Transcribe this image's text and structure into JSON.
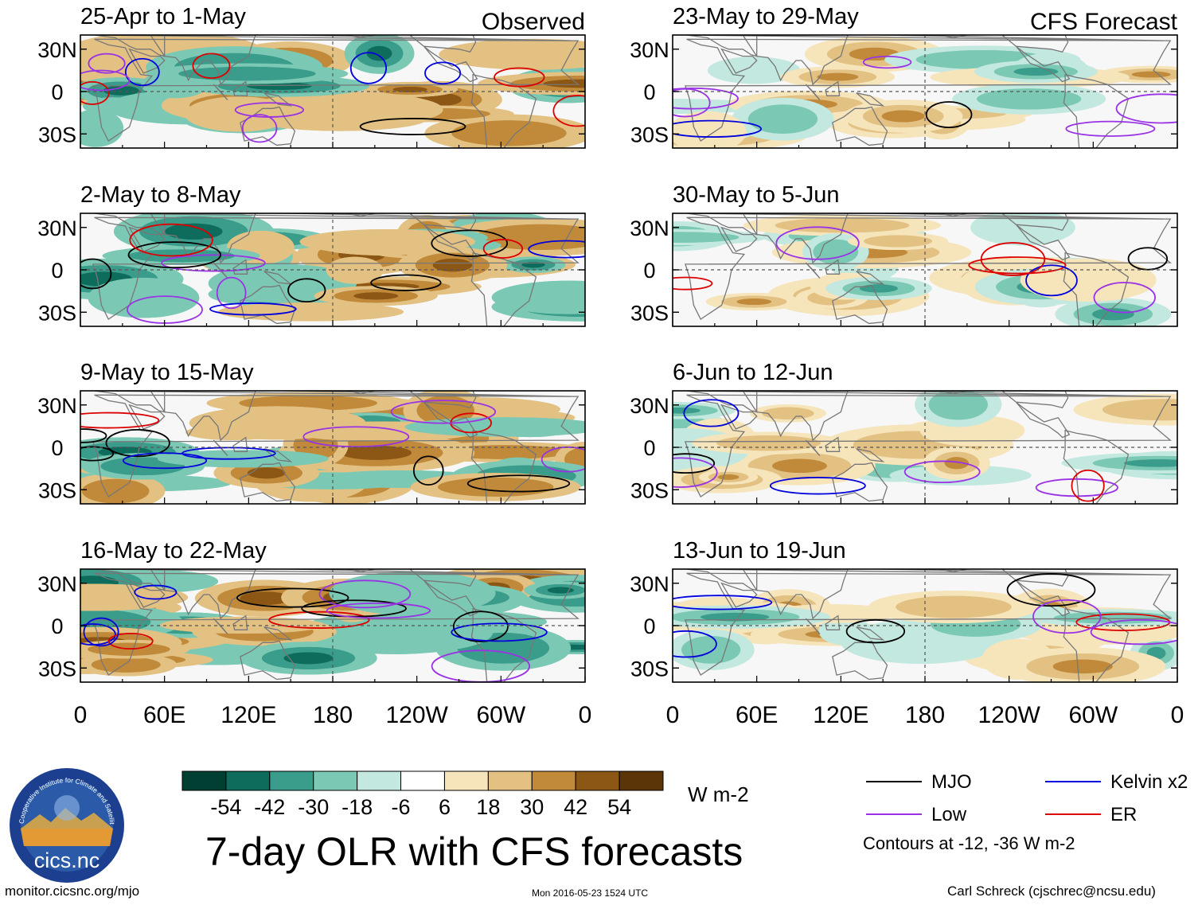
{
  "chart_data": {
    "type": "heatmap",
    "title": "7-day OLR with CFS forecasts",
    "variable": "OLR anomaly",
    "units": "W m-2",
    "colorbar": {
      "colors": [
        "#023f33",
        "#0e6c5c",
        "#3a9c8a",
        "#7bc9b4",
        "#c3e8df",
        "#ffffff",
        "#f6e4bb",
        "#e2c183",
        "#c08a3a",
        "#8c5714",
        "#5b3508"
      ],
      "tick_labels": [
        "-54",
        "-42",
        "-30",
        "-18",
        "-6",
        "6",
        "18",
        "30",
        "42",
        "54"
      ]
    },
    "x_ticks": [
      "0",
      "60E",
      "120E",
      "180",
      "120W",
      "60W",
      "0"
    ],
    "y_ticks": [
      "30N",
      "0",
      "30S"
    ],
    "x_range_deg": [
      0,
      360
    ],
    "y_range_deg": [
      -40,
      40
    ],
    "contour_note": "Contours at -12, -36 W m-2",
    "columns": [
      {
        "name": "Observed",
        "label": "Observed"
      },
      {
        "name": "CFS Forecast",
        "label": "CFS Forecast"
      }
    ],
    "panels": [
      {
        "date": "25-Apr to 1-May",
        "column": "Observed"
      },
      {
        "date": "2-May to 8-May",
        "column": "Observed"
      },
      {
        "date": "9-May to 15-May",
        "column": "Observed"
      },
      {
        "date": "16-May to 22-May",
        "column": "Observed"
      },
      {
        "date": "23-May to 29-May",
        "column": "CFS Forecast"
      },
      {
        "date": "30-May to 5-Jun",
        "column": "CFS Forecast"
      },
      {
        "date": "6-Jun to 12-Jun",
        "column": "CFS Forecast"
      },
      {
        "date": "13-Jun to 19-Jun",
        "column": "CFS Forecast"
      }
    ],
    "legend": [
      {
        "label": "MJO",
        "color": "#000000"
      },
      {
        "label": "Kelvin x2",
        "color": "#0000dd"
      },
      {
        "label": "Low",
        "color": "#9a32e6"
      },
      {
        "label": "ER",
        "color": "#dd0000"
      }
    ]
  },
  "footer": {
    "website": "monitor.cicsnc.org/mjo",
    "timestamp": "Mon 2016-05-23 1524 UTC",
    "credit": "Carl Schreck (cjschrec@ncsu.edu)"
  },
  "logo": {
    "text": "cics.nc",
    "ring_text": "Cooperative Institute for Climate and Satellites"
  }
}
